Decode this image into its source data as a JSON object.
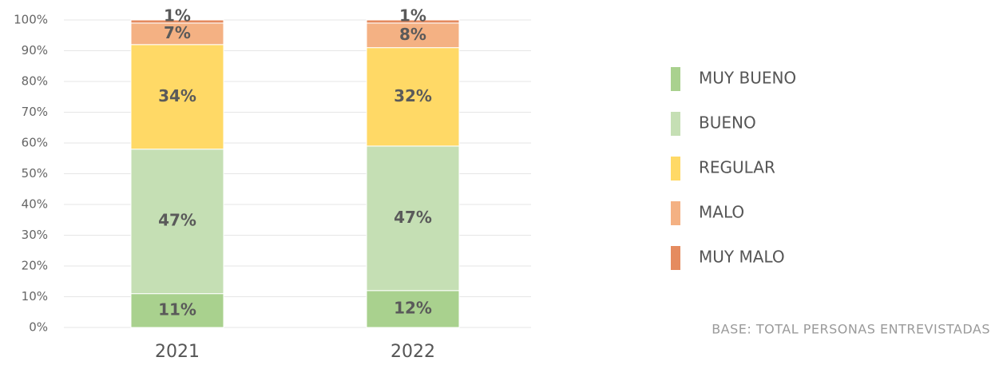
{
  "chart_data": {
    "type": "stacked_bar",
    "categories": [
      "2021",
      "2022"
    ],
    "series": [
      {
        "name": "MUY BUENO",
        "color": "#a9d18e",
        "values": [
          11,
          12
        ],
        "value_labels": [
          "11%",
          "12%"
        ]
      },
      {
        "name": "BUENO",
        "color": "#c5dfb4",
        "values": [
          47,
          47
        ],
        "value_labels": [
          "47%",
          "47%"
        ]
      },
      {
        "name": "REGULAR",
        "color": "#ffd966",
        "values": [
          34,
          32
        ],
        "value_labels": [
          "34%",
          "32%"
        ]
      },
      {
        "name": "MALO",
        "color": "#f4b183",
        "values": [
          7,
          8
        ],
        "value_labels": [
          "7%",
          "8%"
        ]
      },
      {
        "name": "MUY MALO",
        "color": "#e58b5f",
        "values": [
          1,
          1
        ],
        "value_labels": [
          "1%",
          "1%"
        ]
      }
    ],
    "ylim": [
      0,
      100
    ],
    "yticks": [
      {
        "value": 0,
        "label": "0%"
      },
      {
        "value": 10,
        "label": "10%"
      },
      {
        "value": 20,
        "label": "20%"
      },
      {
        "value": 30,
        "label": "30%"
      },
      {
        "value": 40,
        "label": "40%"
      },
      {
        "value": 50,
        "label": "50%"
      },
      {
        "value": 60,
        "label": "60%"
      },
      {
        "value": 70,
        "label": "70%"
      },
      {
        "value": 80,
        "label": "80%"
      },
      {
        "value": 90,
        "label": "90%"
      },
      {
        "value": 100,
        "label": "100%"
      }
    ],
    "grid": true,
    "legend": "right",
    "note": "BASE: TOTAL PERSONAS ENTREVISTADAS"
  }
}
